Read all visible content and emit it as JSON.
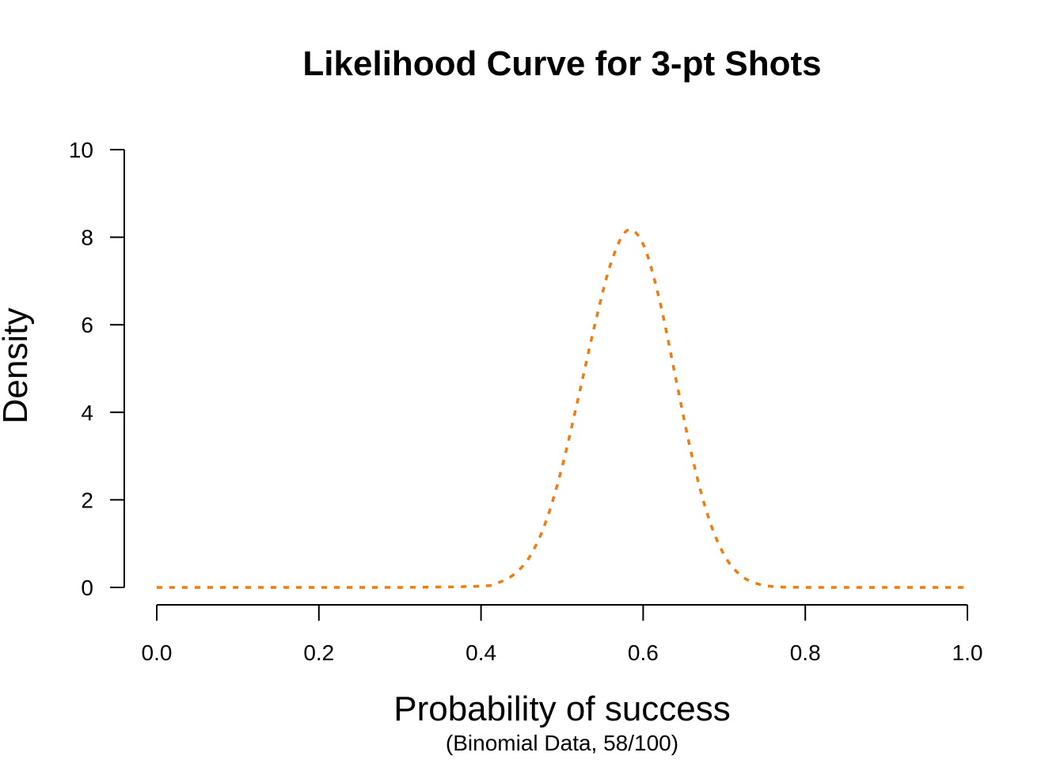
{
  "chart_data": {
    "type": "line",
    "title": "Likelihood Curve for 3-pt Shots",
    "xlabel": "Probability of success",
    "subtitle": "(Binomial Data, 58/100)",
    "ylabel": "Density",
    "xlim": [
      0,
      1
    ],
    "ylim": [
      0,
      10
    ],
    "x_ticks": [
      0.0,
      0.2,
      0.4,
      0.6,
      0.8,
      1.0
    ],
    "x_tick_labels": [
      "0.0",
      "0.2",
      "0.4",
      "0.6",
      "0.8",
      "1.0"
    ],
    "y_ticks": [
      0,
      2,
      4,
      6,
      8,
      10
    ],
    "y_tick_labels": [
      "0",
      "2",
      "4",
      "6",
      "8",
      "10"
    ],
    "grid": false,
    "series": [
      {
        "color": "#f07b10",
        "line_style": "dotted",
        "x": [
          0.0,
          0.1,
          0.2,
          0.3,
          0.4,
          0.42,
          0.44,
          0.46,
          0.48,
          0.5,
          0.52,
          0.54,
          0.56,
          0.58,
          0.6,
          0.62,
          0.64,
          0.66,
          0.68,
          0.7,
          0.72,
          0.74,
          0.76,
          0.8,
          0.9,
          1.0
        ],
        "y": [
          0.0,
          0.0,
          0.0,
          0.0,
          0.03,
          0.1,
          0.29,
          0.7,
          1.5,
          2.75,
          4.33,
          5.97,
          7.39,
          8.15,
          7.84,
          6.58,
          4.8,
          3.02,
          1.63,
          0.74,
          0.28,
          0.09,
          0.02,
          0.0,
          0.0,
          0.0
        ]
      }
    ]
  }
}
